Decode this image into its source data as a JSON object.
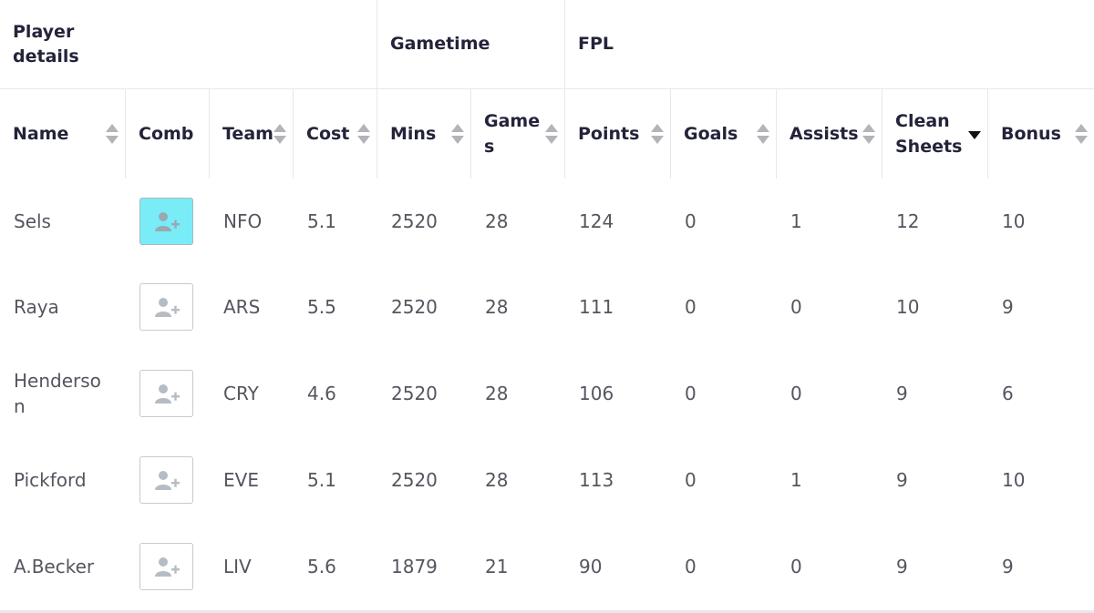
{
  "header_groups": {
    "player_details": "Player details",
    "gametime": "Gametime",
    "fpl": "FPL"
  },
  "columns": {
    "name": "Name",
    "comb": "Comb",
    "team": "Team",
    "cost": "Cost",
    "mins": "Mins",
    "games": "Games",
    "points": "Points",
    "goals": "Goals",
    "assists": "Assists",
    "clean_sheets": "Clean Sheets",
    "bonus": "Bonus"
  },
  "sort": {
    "column": "clean_sheets",
    "direction": "descending"
  },
  "colors": {
    "highlight_row": "#79ecf8",
    "alt_row": "#f6f6f7",
    "header_text": "#23233a",
    "body_text": "#55555f"
  },
  "icons": {
    "add_to_comparison": "add-user-icon",
    "sort": "sort-arrows-icon"
  },
  "rows": [
    {
      "name": "Sels",
      "team": "NFO",
      "cost": "5.1",
      "mins": "2520",
      "games": "28",
      "points": "124",
      "goals": "0",
      "assists": "1",
      "clean_sheets": "12",
      "bonus": "10",
      "highlighted": true
    },
    {
      "name": "Raya",
      "team": "ARS",
      "cost": "5.5",
      "mins": "2520",
      "games": "28",
      "points": "111",
      "goals": "0",
      "assists": "0",
      "clean_sheets": "10",
      "bonus": "9"
    },
    {
      "name": "Henderson",
      "team": "CRY",
      "cost": "4.6",
      "mins": "2520",
      "games": "28",
      "points": "106",
      "goals": "0",
      "assists": "0",
      "clean_sheets": "9",
      "bonus": "6"
    },
    {
      "name": "Pickford",
      "team": "EVE",
      "cost": "5.1",
      "mins": "2520",
      "games": "28",
      "points": "113",
      "goals": "0",
      "assists": "1",
      "clean_sheets": "9",
      "bonus": "10"
    },
    {
      "name": "A.Becker",
      "team": "LIV",
      "cost": "5.6",
      "mins": "1879",
      "games": "21",
      "points": "90",
      "goals": "0",
      "assists": "0",
      "clean_sheets": "9",
      "bonus": "9"
    }
  ]
}
